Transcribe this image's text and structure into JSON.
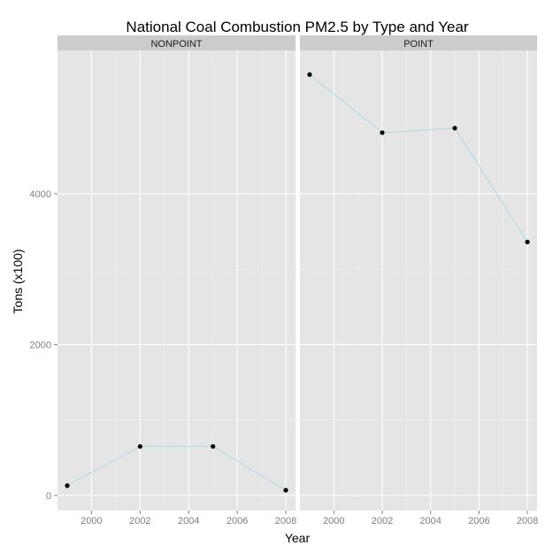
{
  "chart_data": {
    "type": "line",
    "title": "National Coal Combustion PM2.5 by Type and Year",
    "xlabel": "Year",
    "ylabel": "Tons (x100)",
    "xlim": [
      1998.6,
      2008.4
    ],
    "ylim": [
      -200,
      5900
    ],
    "x_ticks": [
      2000,
      2002,
      2004,
      2006,
      2008
    ],
    "y_ticks": [
      0,
      2000,
      4000
    ],
    "grid": true,
    "colors": {
      "panel_bg": "#e5e5e5",
      "strip_bg": "#cccccc",
      "grid_major": "#ffffff",
      "grid_minor": "#f2f2f2",
      "line": "#add8e6",
      "point": "#000000"
    },
    "panels": [
      {
        "label": "NONPOINT",
        "points": [
          {
            "x": 1999,
            "y": 130
          },
          {
            "x": 2002,
            "y": 650
          },
          {
            "x": 2005,
            "y": 650
          },
          {
            "x": 2008,
            "y": 70
          }
        ]
      },
      {
        "label": "POINT",
        "points": [
          {
            "x": 1999,
            "y": 5580
          },
          {
            "x": 2002,
            "y": 4810
          },
          {
            "x": 2005,
            "y": 4870
          },
          {
            "x": 2008,
            "y": 3360
          }
        ]
      }
    ]
  }
}
